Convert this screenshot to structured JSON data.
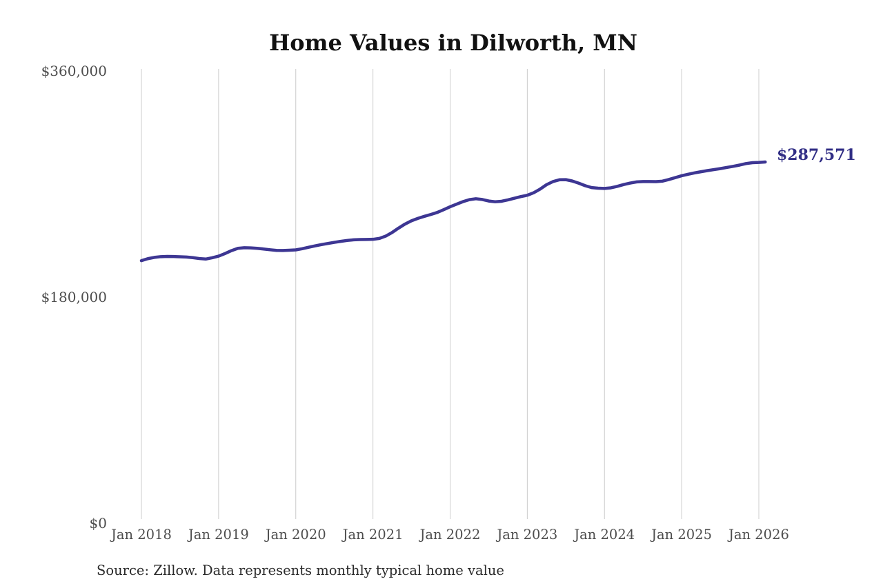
{
  "title": "Home Values in Dilworth, MN",
  "source_note": "Source: Zillow. Data represents monthly typical home value",
  "latest_value_label": "$287,571",
  "colors": {
    "line": "#3d3693",
    "latest_label": "#312e85",
    "grid": "#cccccc",
    "axis_text": "#4d4d4d",
    "title_text": "#111111",
    "source_text": "#2b2b2b",
    "background": "#ffffff"
  },
  "chart_data": {
    "type": "line",
    "title": "Home Values in Dilworth, MN",
    "xlabel": "",
    "ylabel": "",
    "ylim": [
      0,
      360000
    ],
    "grid": "vertical-only",
    "legend": "none",
    "x_tick_labels": [
      "Jan 2018",
      "Jan 2019",
      "Jan 2020",
      "Jan 2021",
      "Jan 2022",
      "Jan 2023",
      "Jan 2024",
      "Jan 2025",
      "Jan 2026"
    ],
    "y_ticks": [
      {
        "label": "$0",
        "value": 0
      },
      {
        "label": "$180,000",
        "value": 180000
      },
      {
        "label": "$360,000",
        "value": 360000
      }
    ],
    "start_month": "2018-01",
    "end_month": "2026-02",
    "months_per_point": 1,
    "latest_value": 287571,
    "series": [
      {
        "name": "Monthly typical home value",
        "values": [
          209000,
          210600,
          211600,
          212200,
          212400,
          212300,
          212100,
          211900,
          211400,
          210700,
          210300,
          211300,
          212600,
          214700,
          217000,
          218800,
          219300,
          219200,
          218800,
          218300,
          217700,
          217200,
          217100,
          217300,
          217600,
          218500,
          219700,
          220800,
          221800,
          222700,
          223600,
          224400,
          225100,
          225600,
          225800,
          225900,
          226000,
          226700,
          228600,
          231500,
          235000,
          238200,
          240800,
          242700,
          244300,
          245800,
          247400,
          249600,
          251900,
          254000,
          256000,
          257600,
          258300,
          257700,
          256500,
          255900,
          256300,
          257400,
          258700,
          260000,
          261100,
          263100,
          266000,
          269500,
          272000,
          273400,
          273500,
          272400,
          270700,
          268700,
          267200,
          266700,
          266500,
          267000,
          268200,
          269600,
          270800,
          271700,
          272000,
          272000,
          271900,
          272300,
          273600,
          275100,
          276600,
          277800,
          278900,
          279800,
          280700,
          281500,
          282300,
          283200,
          284100,
          285100,
          286300,
          287000,
          287200,
          287571
        ]
      }
    ]
  }
}
